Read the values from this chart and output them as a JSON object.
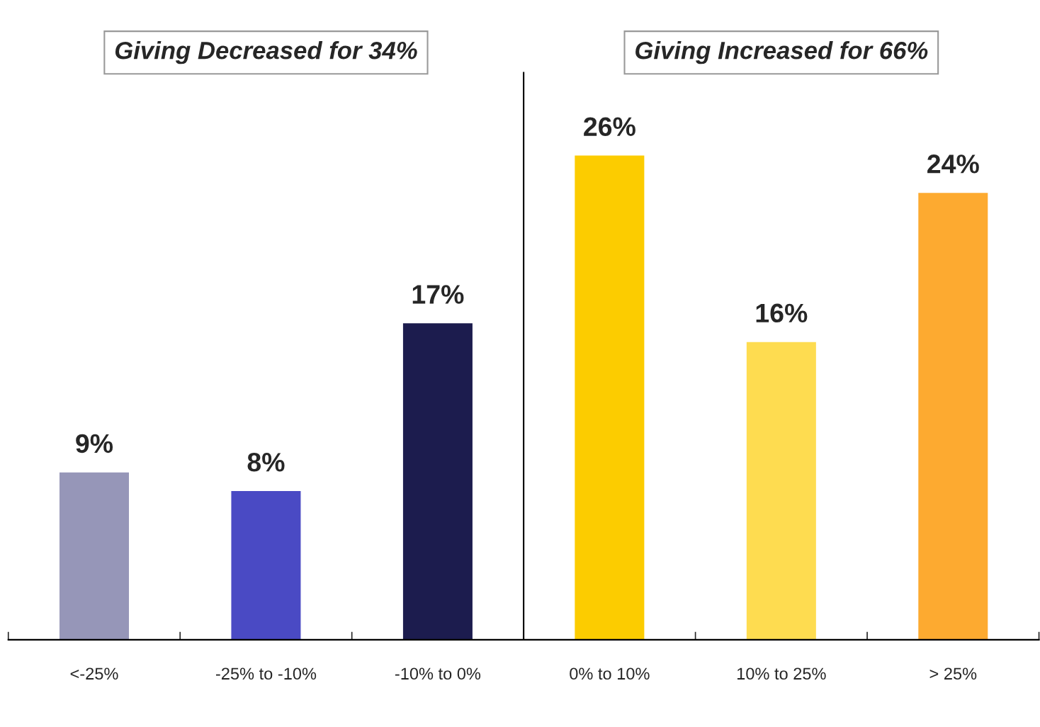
{
  "chart_data": [
    {
      "type": "bar",
      "title": "Giving Decreased for 34%",
      "categories": [
        "<-25%",
        "-25% to -10%",
        "-10% to 0%"
      ],
      "values": [
        9,
        8,
        17
      ],
      "colors": [
        "#9696b8",
        "#4a4ac4",
        "#1c1c4e"
      ],
      "value_labels": [
        "9%",
        "8%",
        "17%"
      ],
      "grid": false,
      "legend": false
    },
    {
      "type": "bar",
      "title": "Giving Increased for 66%",
      "categories": [
        "0% to 10%",
        "10% to 25%",
        "> 25%"
      ],
      "values": [
        26,
        16,
        24
      ],
      "colors": [
        "#fccc00",
        "#fedc50",
        "#fdaa30"
      ],
      "value_labels": [
        "26%",
        "16%",
        "24%"
      ],
      "grid": false,
      "legend": false
    }
  ]
}
